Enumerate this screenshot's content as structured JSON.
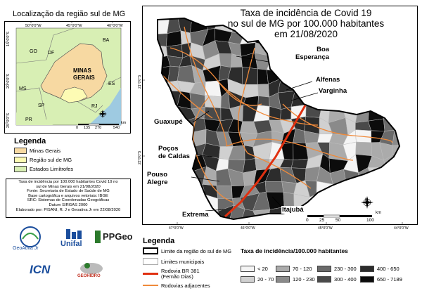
{
  "inset": {
    "title": "Localização da região sul de MG",
    "labels": {
      "go": "GO",
      "df": "DF",
      "ba": "BA",
      "mg1": "MINAS",
      "mg2": "GERAIS",
      "ms": "MS",
      "es": "ES",
      "sp": "SP",
      "rj": "RJ",
      "pr": "PR"
    },
    "top_ticks": [
      "50°0'0\"W",
      "45°0'0\"W",
      "40°0'0\"W"
    ],
    "left_ticks": [
      "15°0'0\"S",
      "20°0'0\"S",
      "25°0'0\"S"
    ],
    "scale": [
      "0",
      "135",
      "270",
      "540",
      "km"
    ]
  },
  "inset_legend": {
    "title": "Legenda",
    "items": [
      "Minas Gerais",
      "Região sul de MG",
      "Estados Limítrofes"
    ],
    "colors": [
      "#f7d9a2",
      "#fdfbb4",
      "#d8efb4"
    ]
  },
  "credits": {
    "lines": [
      "Taxa de incidência por 100.000 habitantes Covid 19 no",
      "sul de Minas Gerais em 21/08/2020",
      "Fonte: Secretaria de Estado de Saúde de MG",
      "Base cartográfica e arquivos vetoriais: IBGE",
      "SRC: Sistemas de Coordenadas Geográficas",
      "Datum SIRGAS 2000",
      "Elaborado por: PISANI, R. J e Geoativa Jr em 22/08/2020"
    ]
  },
  "logos": {
    "geoativa": "GeoAtiva Jr",
    "unifal": "Unifal",
    "ppgeo": "PPGeo",
    "icn": "ICN",
    "geohidro": "GEOHIDRO"
  },
  "map": {
    "title_lines": [
      "Taxa de incidência de Covid 19",
      "no sul de MG por 100.000 habitantes",
      "em 21/08/2020"
    ],
    "cities": {
      "boa1": "Boa",
      "boa2": "Esperança",
      "alfenas": "Alfenas",
      "varginha": "Varginha",
      "guaxupe": "Guaxupé",
      "pocos1": "Poços",
      "pocos2": "de Caldas",
      "pouso1": "Pouso",
      "pouso2": "Alegre",
      "itajuba": "Itajubá",
      "extrema": "Extrema"
    },
    "bottom_ticks": [
      "47°0'0\"W",
      "46°0'0\"W",
      "45°0'0\"W",
      "44°0'0\"W"
    ],
    "left_ticks": [
      "21°0'0\"S",
      "22°0'0\"S"
    ],
    "scale": [
      "0",
      "25",
      "50",
      "100"
    ],
    "scale_unit": "km",
    "north": "N"
  },
  "legend": {
    "title": "Legenda",
    "items": [
      "Limite da região do sul de MG",
      "Limites municipais",
      "Rodovia BR 381 (Fernão Dias)",
      "Rodovias adjacentes"
    ],
    "road_color": "#e03010",
    "adj_color": "#f08a3a"
  },
  "incidence": {
    "title": "Taxa de incidência/100.000 habitantes",
    "classes": [
      "< 20",
      "20 - 70",
      "70 - 120",
      "120 - 230",
      "230 - 300",
      "300 - 400",
      "400 - 650",
      "650 - 7189"
    ],
    "colors": [
      "#f4f4f4",
      "#d0d0d0",
      "#ababab",
      "#8a8a8a",
      "#6a6a6a",
      "#4a4a4a",
      "#2c2c2c",
      "#0c0c0c"
    ]
  }
}
